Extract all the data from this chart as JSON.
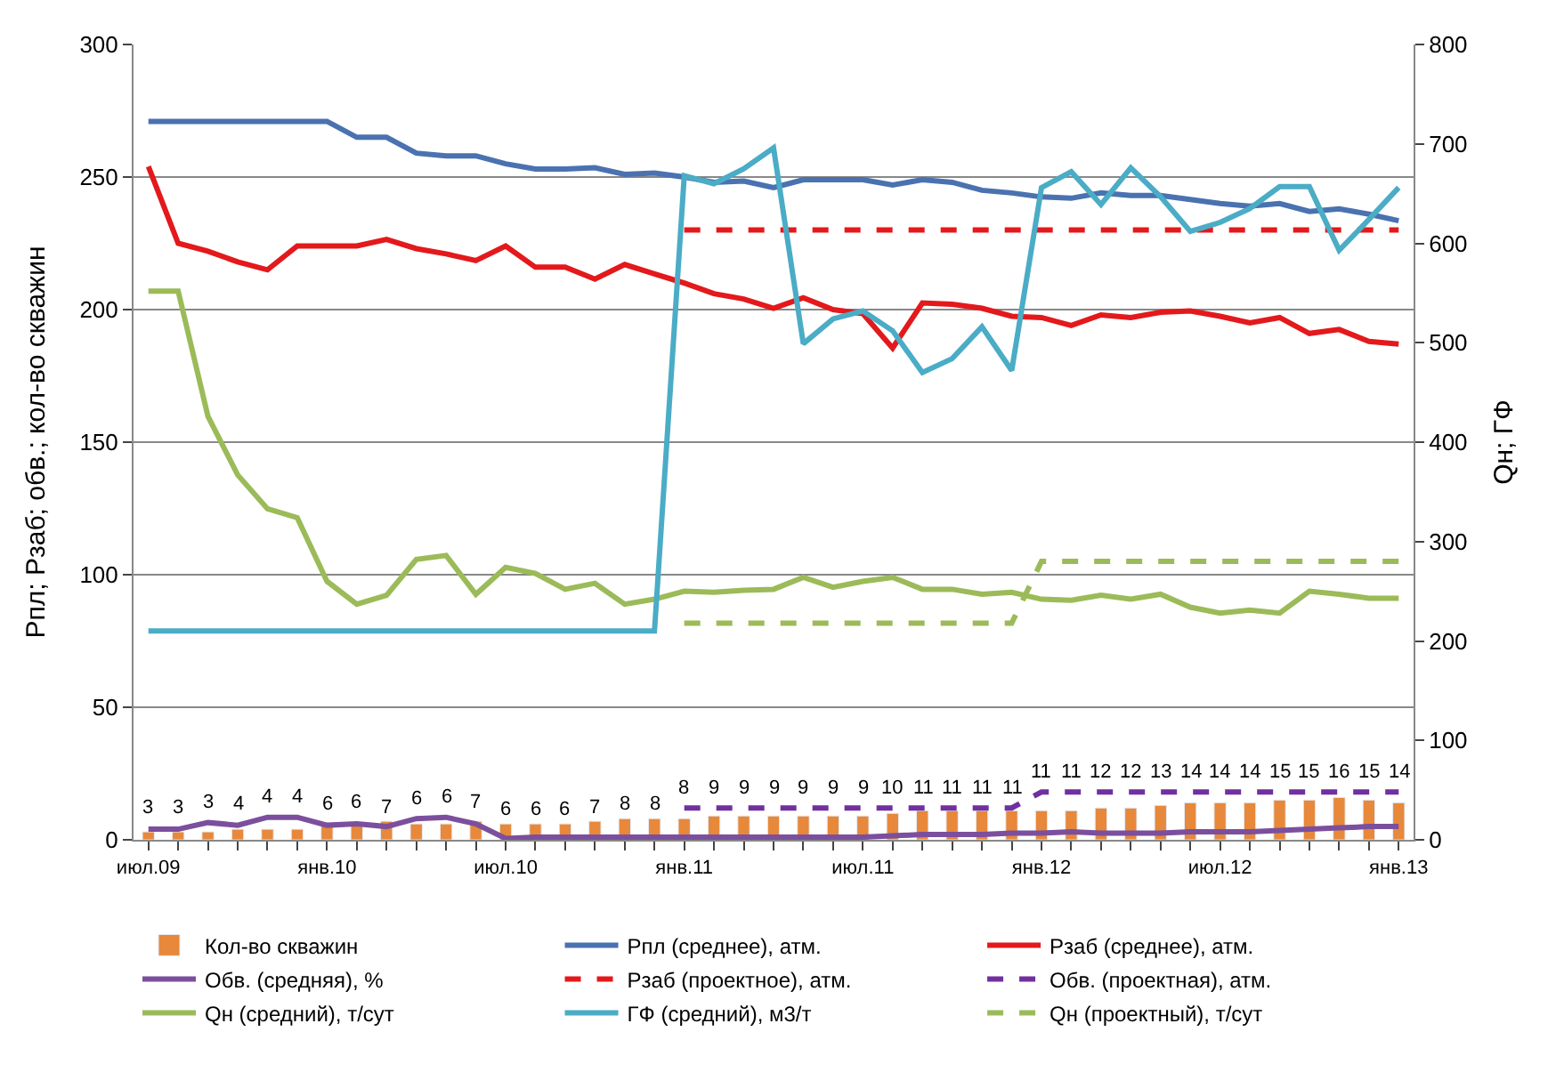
{
  "chart_data": {
    "type": "line",
    "categories": [
      "июл.09",
      null,
      null,
      null,
      null,
      null,
      "янв.10",
      null,
      null,
      null,
      null,
      null,
      "июл.10",
      null,
      null,
      null,
      null,
      null,
      "янв.11",
      null,
      null,
      null,
      null,
      null,
      "июл.11",
      null,
      null,
      null,
      null,
      null,
      "янв.12",
      null,
      null,
      null,
      null,
      null,
      "июл.12",
      null,
      null,
      null,
      null,
      null,
      "янв.13"
    ],
    "ylabel": "Рпл; Рзаб; обв.; кол-во скважин",
    "y2label": "Qн; ГФ",
    "ylim": [
      0,
      300
    ],
    "yticks": [
      0,
      50,
      100,
      150,
      200,
      250,
      300
    ],
    "y2lim": [
      0,
      800
    ],
    "y2ticks": [
      0,
      100,
      200,
      300,
      400,
      500,
      600,
      700,
      800
    ],
    "grid": "y",
    "legend": "bottom",
    "series": [
      {
        "name": "Кол-во скважин",
        "type": "bar",
        "color": "#e8883a",
        "data_labels": true,
        "values": [
          3,
          3,
          3,
          4,
          4,
          4,
          6,
          6,
          7,
          6,
          6,
          7,
          6,
          6,
          6,
          7,
          8,
          8,
          8,
          9,
          9,
          9,
          9,
          9,
          9,
          10,
          11,
          11,
          11,
          11,
          11,
          11,
          12,
          12,
          13,
          14,
          14,
          14,
          15,
          15,
          16,
          15,
          14
        ]
      },
      {
        "name": "Рпл (среднее), атм.",
        "color": "#4a72b0",
        "values": [
          271,
          271,
          271,
          271,
          271,
          271,
          271,
          265,
          265,
          259,
          258,
          258,
          255,
          253,
          253,
          253.5,
          251,
          251.5,
          250,
          248,
          248.5,
          246,
          249,
          249,
          249,
          247,
          249,
          248,
          245,
          244,
          242.5,
          242,
          244,
          243,
          243,
          241.5,
          240,
          239,
          240,
          237,
          238,
          236,
          233.5
        ]
      },
      {
        "name": "Рзаб (среднее), атм.",
        "color": "#e3191c",
        "values": [
          254,
          225,
          222,
          218,
          215,
          224,
          224,
          224,
          226.5,
          223,
          221,
          218.5,
          224,
          216,
          216,
          211.5,
          217,
          213.5,
          210,
          206,
          204,
          200.5,
          204.5,
          200,
          198.5,
          185.5,
          202.5,
          202,
          200.5,
          197.5,
          197,
          194,
          198,
          197,
          199,
          199.5,
          197.5,
          195,
          197,
          191,
          192.5,
          188,
          187
        ]
      },
      {
        "name": "Обв. (средняя), %",
        "color": "#7b4f9d",
        "values": [
          4,
          4,
          6.5,
          5.5,
          8.5,
          8.5,
          5.5,
          6,
          5,
          8,
          8.5,
          6,
          0.5,
          1,
          1,
          1,
          1,
          1,
          1,
          1,
          1,
          1,
          1,
          1,
          1,
          1.5,
          2,
          2,
          2,
          2.5,
          2.5,
          3,
          2.5,
          2.5,
          2.5,
          3,
          3,
          3,
          3.5,
          4,
          4.5,
          5,
          5
        ]
      },
      {
        "name": "Рзаб (проектное), атм.",
        "color": "#e3191c",
        "line_style": "dashed",
        "values": [
          null,
          null,
          null,
          null,
          null,
          null,
          null,
          null,
          null,
          null,
          null,
          null,
          null,
          null,
          null,
          null,
          null,
          null,
          230,
          230,
          230,
          230,
          230,
          230,
          230,
          230,
          230,
          230,
          230,
          230,
          230,
          230,
          230,
          230,
          230,
          230,
          230,
          230,
          230,
          230,
          230,
          230,
          230
        ]
      },
      {
        "name": "Обв. (проектная), атм.",
        "color": "#7030a0",
        "line_style": "dashed",
        "values": [
          null,
          null,
          null,
          null,
          null,
          null,
          null,
          null,
          null,
          null,
          null,
          null,
          null,
          null,
          null,
          null,
          null,
          null,
          12,
          12,
          12,
          12,
          12,
          12,
          12,
          12,
          12,
          12,
          12,
          12,
          18,
          18,
          18,
          18,
          18,
          18,
          18,
          18,
          18,
          18,
          18,
          18,
          18
        ]
      },
      {
        "name": "Qн (средний), т/сут",
        "color": "#9bbb59",
        "axis": "y2",
        "values": [
          552,
          552,
          426,
          367,
          333,
          324,
          260,
          237,
          246,
          282,
          286,
          247,
          274,
          268,
          252,
          258,
          237,
          242,
          250,
          249,
          251,
          252,
          264,
          254,
          260,
          264,
          252,
          252,
          247,
          249,
          242,
          241,
          246,
          242,
          247,
          234,
          228,
          231,
          228,
          250,
          247,
          243,
          243
        ]
      },
      {
        "name": "ГФ (средний), м3/т",
        "color": "#4bacc6",
        "axis": "y2",
        "values": [
          210,
          210,
          210,
          210,
          210,
          210,
          210,
          210,
          210,
          210,
          210,
          210,
          210,
          210,
          210,
          210,
          210,
          210,
          668,
          660,
          675,
          696,
          499,
          524,
          532,
          512,
          470,
          484,
          516,
          472,
          656,
          672,
          639,
          676,
          647,
          612,
          621,
          635,
          657,
          657,
          593,
          624,
          656
        ]
      },
      {
        "name": "Qн (проектный), т/сут",
        "color": "#9bbb59",
        "axis": "y2",
        "line_style": "dashed",
        "values": [
          null,
          null,
          null,
          null,
          null,
          null,
          null,
          null,
          null,
          null,
          null,
          null,
          null,
          null,
          null,
          null,
          null,
          null,
          218,
          218,
          218,
          218,
          218,
          218,
          218,
          218,
          218,
          218,
          218,
          218,
          280,
          280,
          280,
          280,
          280,
          280,
          280,
          280,
          280,
          280,
          280,
          280,
          280
        ]
      }
    ]
  }
}
